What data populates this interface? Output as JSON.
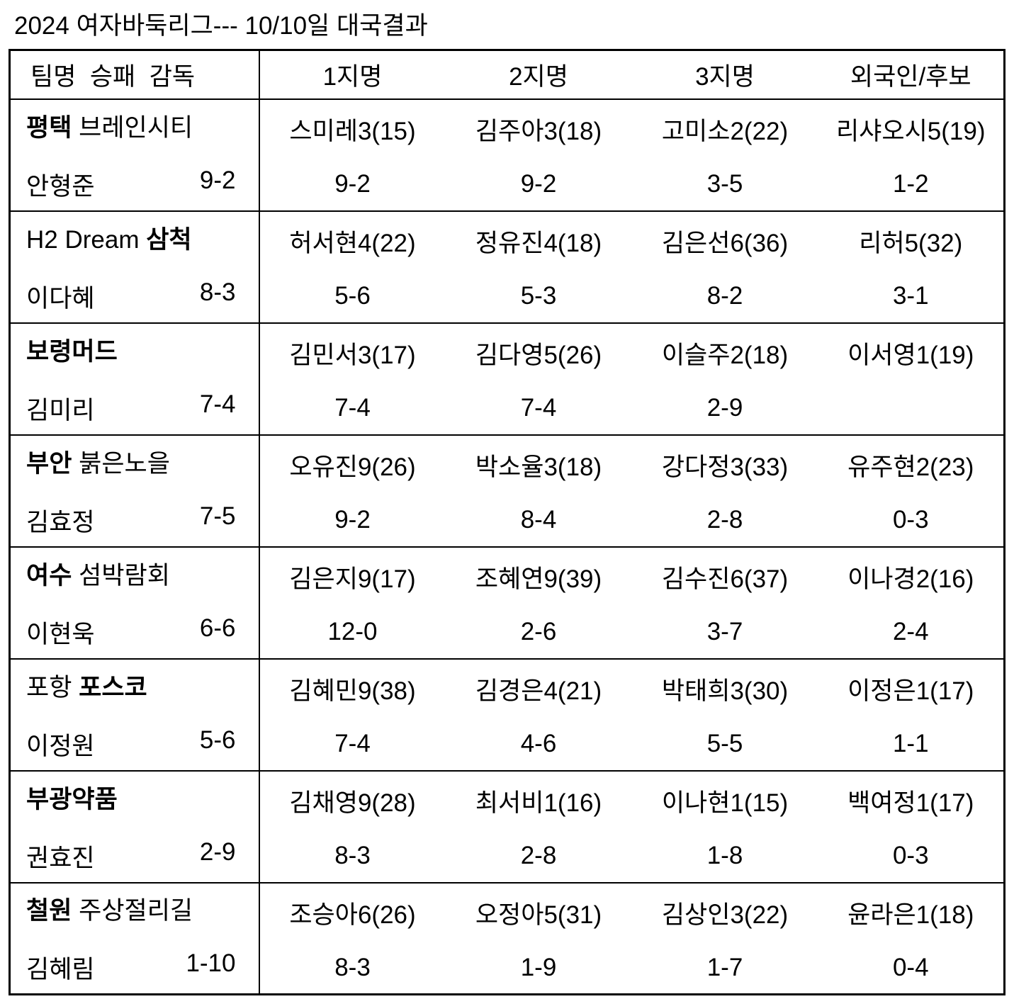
{
  "title": "2024 여자바둑리그--- 10/10일 대국결과",
  "header": {
    "team_col": "팀명  승패  감독",
    "cols": [
      "1지명",
      "2지명",
      "3지명",
      "외국인/후보"
    ]
  },
  "rows": [
    {
      "team_parts": [
        {
          "text": "평택 ",
          "bold": true
        },
        {
          "text": "브레인시티",
          "bold": false
        }
      ],
      "coach": "안형준",
      "record": "9-2",
      "players": [
        {
          "name": "스미레3(15)",
          "record": "9-2"
        },
        {
          "name": "김주아3(18)",
          "record": "9-2"
        },
        {
          "name": "고미소2(22)",
          "record": "3-5"
        },
        {
          "name": "리샤오시5(19)",
          "record": "1-2"
        }
      ]
    },
    {
      "team_parts": [
        {
          "text": "H2 Dream ",
          "bold": false
        },
        {
          "text": "삼척",
          "bold": true
        }
      ],
      "coach": "이다혜",
      "record": "8-3",
      "players": [
        {
          "name": "허서현4(22)",
          "record": "5-6"
        },
        {
          "name": "정유진4(18)",
          "record": "5-3"
        },
        {
          "name": "김은선6(36)",
          "record": "8-2"
        },
        {
          "name": "리허5(32)",
          "record": "3-1"
        }
      ]
    },
    {
      "team_parts": [
        {
          "text": "보령머드",
          "bold": true
        }
      ],
      "coach": "김미리",
      "record": "7-4",
      "players": [
        {
          "name": "김민서3(17)",
          "record": "7-4"
        },
        {
          "name": "김다영5(26)",
          "record": "7-4"
        },
        {
          "name": "이슬주2(18)",
          "record": "2-9"
        },
        {
          "name": "이서영1(19)",
          "record": ""
        }
      ]
    },
    {
      "team_parts": [
        {
          "text": "부안 ",
          "bold": true
        },
        {
          "text": "붉은노을",
          "bold": false
        }
      ],
      "coach": "김효정",
      "record": "7-5",
      "players": [
        {
          "name": "오유진9(26)",
          "record": "9-2"
        },
        {
          "name": "박소율3(18)",
          "record": "8-4"
        },
        {
          "name": "강다정3(33)",
          "record": "2-8"
        },
        {
          "name": "유주현2(23)",
          "record": "0-3"
        }
      ]
    },
    {
      "team_parts": [
        {
          "text": "여수 ",
          "bold": true
        },
        {
          "text": "섬박람회",
          "bold": false
        }
      ],
      "coach": "이현욱",
      "record": "6-6",
      "players": [
        {
          "name": "김은지9(17)",
          "record": "12-0"
        },
        {
          "name": "조혜연9(39)",
          "record": "2-6"
        },
        {
          "name": "김수진6(37)",
          "record": "3-7"
        },
        {
          "name": "이나경2(16)",
          "record": "2-4"
        }
      ]
    },
    {
      "team_parts": [
        {
          "text": "포항 ",
          "bold": false
        },
        {
          "text": "포스코",
          "bold": true
        }
      ],
      "coach": "이정원",
      "record": "5-6",
      "players": [
        {
          "name": "김혜민9(38)",
          "record": "7-4"
        },
        {
          "name": "김경은4(21)",
          "record": "4-6"
        },
        {
          "name": "박태희3(30)",
          "record": "5-5"
        },
        {
          "name": "이정은1(17)",
          "record": "1-1"
        }
      ]
    },
    {
      "team_parts": [
        {
          "text": "부광약품",
          "bold": true
        }
      ],
      "coach": "권효진",
      "record": "2-9",
      "players": [
        {
          "name": "김채영9(28)",
          "record": "8-3"
        },
        {
          "name": "최서비1(16)",
          "record": "2-8"
        },
        {
          "name": "이나현1(15)",
          "record": "1-8"
        },
        {
          "name": "백여정1(17)",
          "record": "0-3"
        }
      ]
    },
    {
      "team_parts": [
        {
          "text": "철원 ",
          "bold": true
        },
        {
          "text": "주상절리길",
          "bold": false
        }
      ],
      "coach": "김혜림",
      "record": "1-10",
      "players": [
        {
          "name": "조승아6(26)",
          "record": "8-3"
        },
        {
          "name": "오정아5(31)",
          "record": "1-9"
        },
        {
          "name": "김상인3(22)",
          "record": "1-7"
        },
        {
          "name": "윤라은1(18)",
          "record": "0-4"
        }
      ]
    }
  ]
}
